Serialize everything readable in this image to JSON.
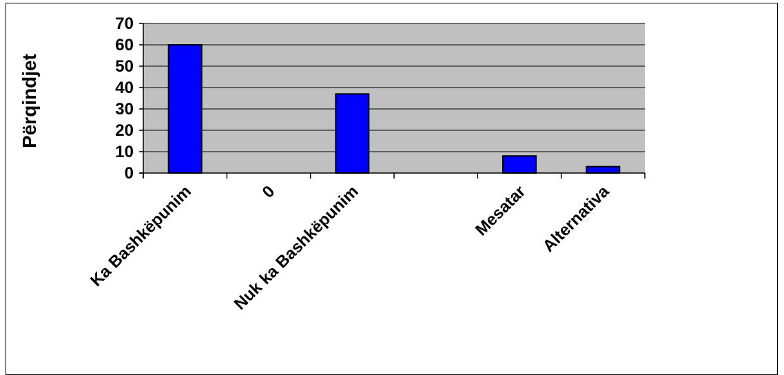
{
  "chart_data": {
    "type": "bar",
    "categories": [
      "Ka Bashkëpunim",
      "0",
      "Nuk ka Bashkëpunim",
      "",
      "Mesatar",
      "Alternativa"
    ],
    "values": [
      60,
      0,
      37,
      0,
      8,
      3
    ],
    "ylabel": "Përqindjet",
    "ylim": [
      0,
      70
    ],
    "yticks": [
      "0",
      "10",
      "20",
      "30",
      "40",
      "50",
      "60",
      "70"
    ],
    "grid": true,
    "legend": "none",
    "colors": {
      "plot_bg": "#c0c0c0",
      "bar_fill": "#0000ff",
      "bar_stroke": "#000000",
      "grid": "#000000"
    }
  }
}
